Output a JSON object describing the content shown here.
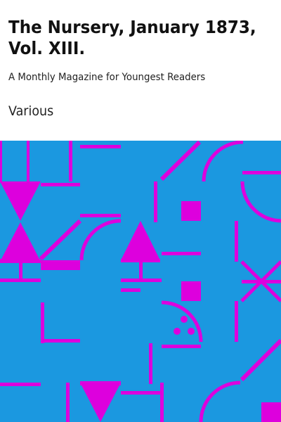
{
  "book": {
    "title": "The Nursery, January 1873, Vol. XIII.",
    "subtitle": "A Monthly Magazine for Youngest Readers",
    "author": "Various"
  },
  "colors": {
    "background": "#ffffff",
    "pattern_background": "#1b98e0",
    "pattern_foreground": "#dd00dd"
  }
}
